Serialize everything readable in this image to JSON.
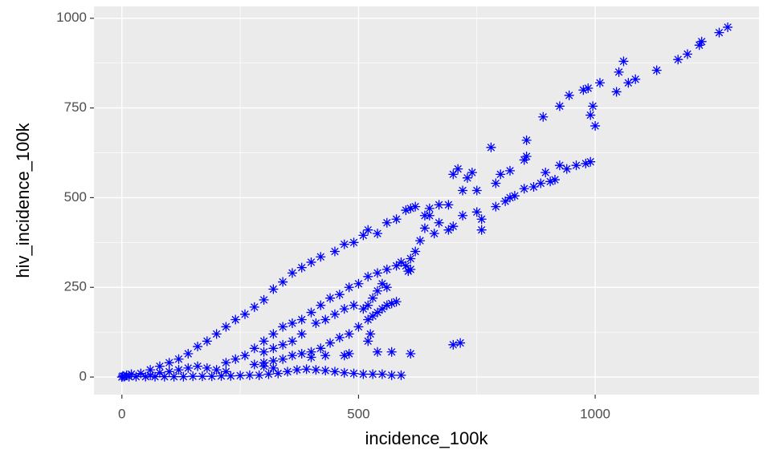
{
  "chart_data": {
    "type": "scatter",
    "xlabel": "incidence_100k",
    "ylabel": "hiv_incidence_100k",
    "color": "#0000ff",
    "grid": true,
    "xlim": [
      -59,
      1346
    ],
    "ylim": [
      -49,
      1033
    ],
    "xticks": [
      0,
      500,
      1000
    ],
    "yticks": [
      0,
      250,
      500,
      750,
      1000
    ],
    "xminor": [
      250,
      750
    ],
    "yminor": [
      125,
      375,
      625,
      875
    ],
    "x": [
      1280,
      1262,
      1225,
      1220,
      1195,
      1175,
      1130,
      1085,
      1070,
      1045,
      1060,
      1050,
      1010,
      985,
      975,
      945,
      925,
      995,
      990,
      1000,
      890,
      855,
      780,
      855,
      850,
      820,
      800,
      790,
      740,
      730,
      710,
      700,
      720,
      750,
      690,
      670,
      650,
      640,
      620,
      610,
      600,
      580,
      560,
      540,
      520,
      510,
      490,
      470,
      450,
      420,
      400,
      380,
      360,
      340,
      320,
      300,
      280,
      260,
      240,
      220,
      200,
      180,
      160,
      140,
      120,
      100,
      80,
      60,
      990,
      980,
      960,
      940,
      925,
      915,
      905,
      895,
      885,
      870,
      850,
      830,
      820,
      810,
      790,
      760,
      760,
      750,
      720,
      700,
      690,
      670,
      660,
      650,
      640,
      630,
      620,
      610,
      600,
      605,
      610,
      590,
      580,
      560,
      540,
      520,
      500,
      480,
      460,
      440,
      420,
      400,
      380,
      360,
      340,
      320,
      300,
      280,
      260,
      240,
      220,
      580,
      570,
      560,
      550,
      540,
      530,
      520,
      500,
      480,
      460,
      440,
      420,
      400,
      380,
      360,
      340,
      320,
      300,
      280,
      560,
      550,
      540,
      530,
      520,
      510,
      490,
      470,
      450,
      430,
      410,
      380,
      360,
      340,
      320,
      300,
      700,
      715,
      610,
      570,
      540,
      520,
      525,
      480,
      470,
      430,
      400,
      320,
      300,
      590,
      570,
      550,
      530,
      510,
      490,
      470,
      450,
      430,
      410,
      390,
      370,
      350,
      330,
      310,
      290,
      270,
      250,
      230,
      210,
      190,
      170,
      150,
      130,
      110,
      90,
      70,
      50,
      30,
      15,
      5,
      0,
      2,
      10,
      20,
      40,
      60,
      80,
      100,
      120,
      140,
      160,
      180,
      200,
      220
    ],
    "values": [
      975,
      960,
      935,
      925,
      900,
      885,
      855,
      830,
      820,
      795,
      880,
      850,
      820,
      805,
      800,
      785,
      755,
      755,
      730,
      700,
      725,
      660,
      640,
      615,
      605,
      575,
      565,
      540,
      570,
      555,
      580,
      565,
      520,
      520,
      480,
      480,
      470,
      450,
      475,
      470,
      465,
      440,
      430,
      400,
      410,
      395,
      375,
      370,
      350,
      335,
      320,
      305,
      290,
      265,
      245,
      215,
      195,
      175,
      160,
      140,
      120,
      100,
      85,
      65,
      50,
      40,
      30,
      20,
      600,
      595,
      590,
      580,
      590,
      550,
      545,
      570,
      540,
      530,
      525,
      505,
      500,
      490,
      475,
      410,
      440,
      460,
      450,
      420,
      410,
      430,
      400,
      450,
      415,
      380,
      350,
      330,
      310,
      295,
      300,
      320,
      310,
      300,
      290,
      280,
      260,
      250,
      230,
      220,
      200,
      180,
      160,
      150,
      140,
      120,
      100,
      80,
      60,
      50,
      40,
      210,
      205,
      200,
      190,
      180,
      170,
      160,
      140,
      120,
      110,
      95,
      80,
      70,
      65,
      60,
      50,
      45,
      40,
      35,
      250,
      260,
      240,
      220,
      200,
      190,
      200,
      190,
      175,
      160,
      150,
      120,
      100,
      90,
      80,
      70,
      90,
      95,
      65,
      70,
      70,
      100,
      120,
      65,
      60,
      60,
      55,
      25,
      30,
      5,
      5,
      8,
      8,
      8,
      10,
      12,
      15,
      18,
      20,
      22,
      20,
      15,
      10,
      8,
      5,
      5,
      4,
      3,
      3,
      2,
      2,
      2,
      1,
      1,
      1,
      1,
      1,
      1,
      1,
      1,
      0,
      3,
      5,
      8,
      10,
      5,
      12,
      15,
      20,
      25,
      30,
      25,
      20,
      15
    ]
  }
}
